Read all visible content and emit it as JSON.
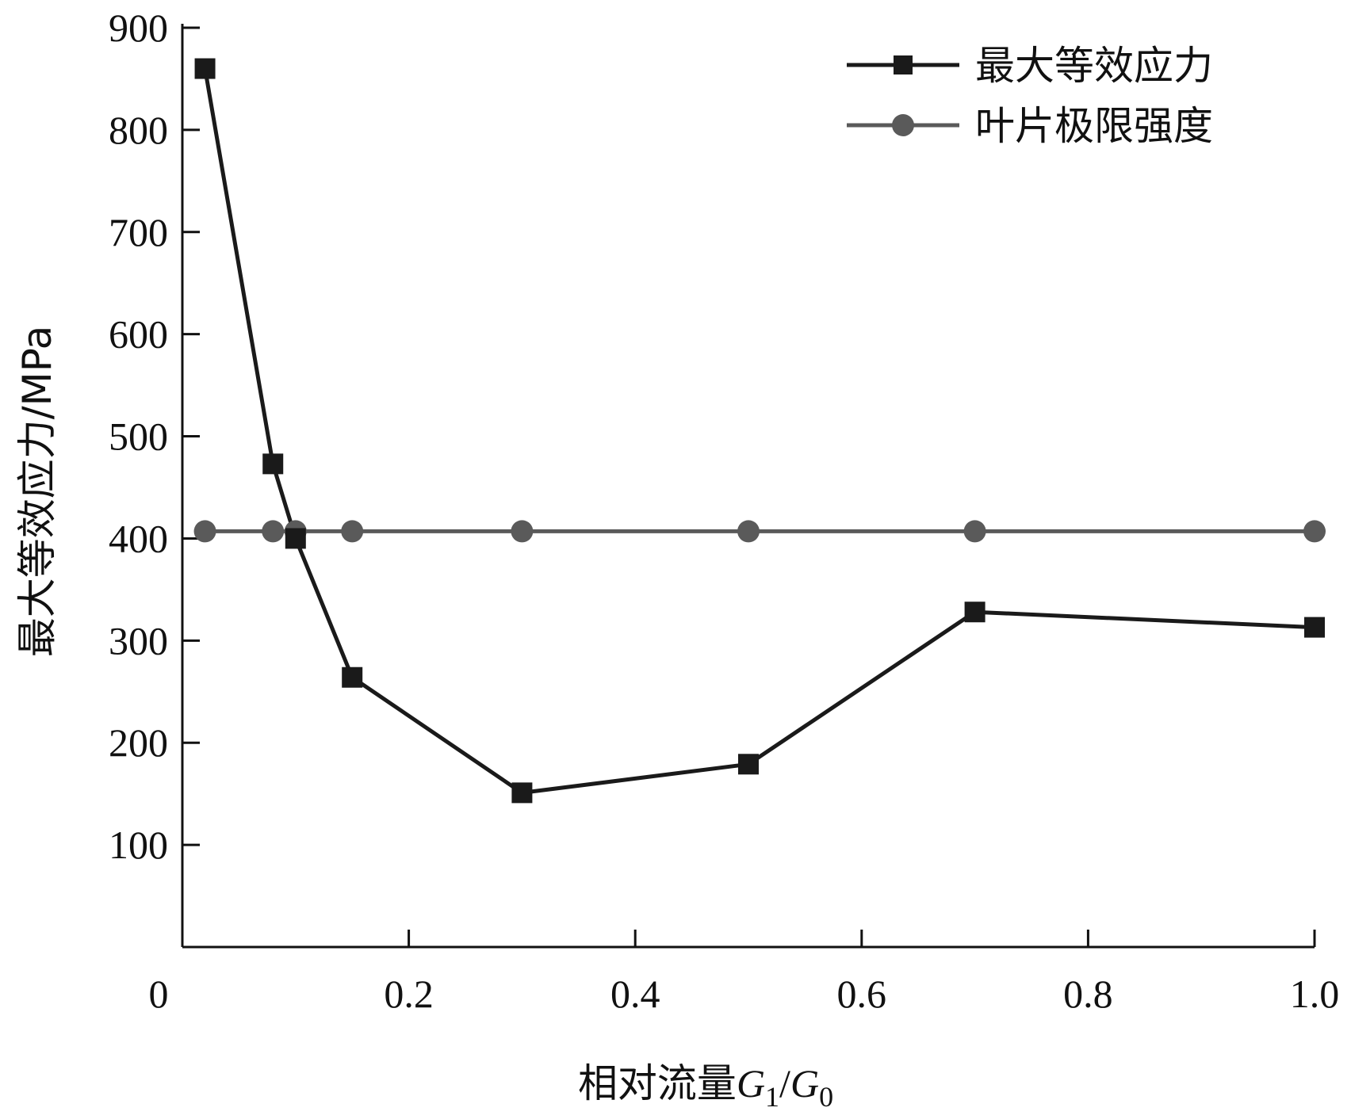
{
  "chart_data": {
    "type": "line",
    "title": "",
    "xlabel": "相对流量",
    "xlabel_symbol": {
      "num": "G",
      "num_sub": "1",
      "sep": "/",
      "den": "G",
      "den_sub": "0"
    },
    "ylabel": "最大等效应力/MPa",
    "xlim": [
      0,
      1.0
    ],
    "ylim": [
      0,
      900
    ],
    "xticks": [
      0,
      0.2,
      0.4,
      0.6,
      0.8,
      1.0
    ],
    "xtick_labels": [
      "0",
      "0.2",
      "0.4",
      "0.6",
      "0.8",
      "1.0"
    ],
    "yticks": [
      100,
      200,
      300,
      400,
      500,
      600,
      700,
      800,
      900
    ],
    "ytick_labels": [
      "100",
      "200",
      "300",
      "400",
      "500",
      "600",
      "700",
      "800",
      "900"
    ],
    "legend_position": "top-right",
    "grid": false,
    "series": [
      {
        "name": "最大等效应力",
        "marker": "square",
        "color": "#1a1a1a",
        "x": [
          0.02,
          0.08,
          0.1,
          0.15,
          0.3,
          0.5,
          0.7,
          1.0
        ],
        "y": [
          860,
          473,
          400,
          264,
          151,
          179,
          328,
          313
        ]
      },
      {
        "name": "叶片极限强度",
        "marker": "circle",
        "color": "#5a5a5a",
        "x": [
          0.02,
          0.08,
          0.1,
          0.15,
          0.3,
          0.5,
          0.7,
          1.0
        ],
        "y": [
          407,
          407,
          407,
          407,
          407,
          407,
          407,
          407
        ]
      }
    ]
  }
}
